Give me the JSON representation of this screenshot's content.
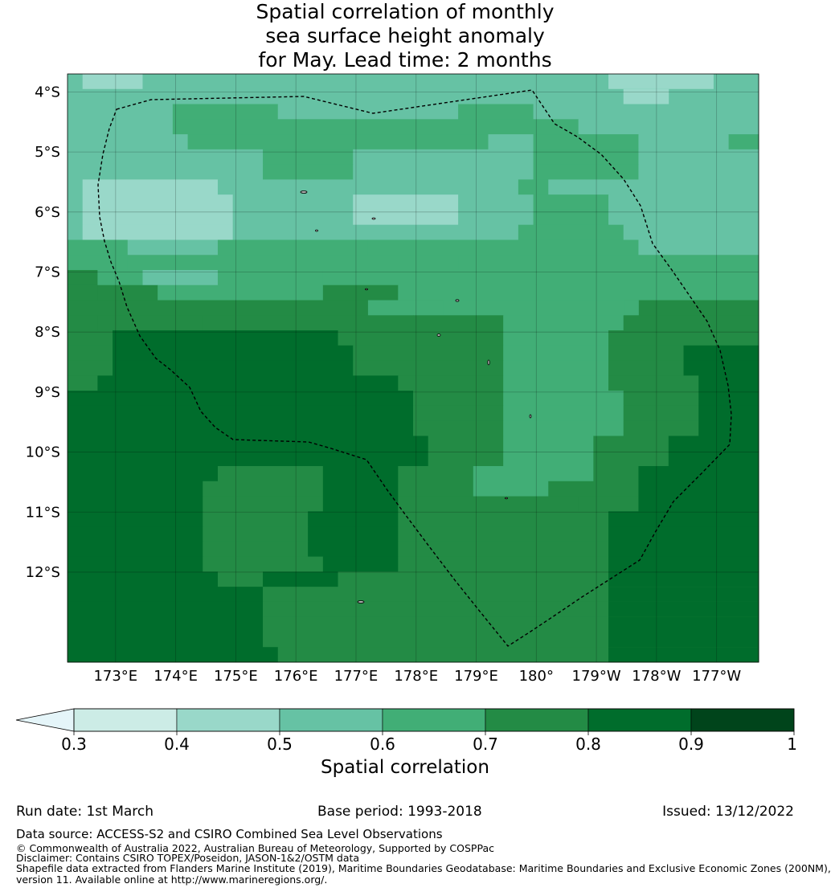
{
  "title_lines": [
    "Spatial correlation of monthly",
    "sea surface height anomaly",
    "for May. Lead time: 2 months"
  ],
  "map": {
    "lat_labels": [
      "4°S",
      "5°S",
      "6°S",
      "7°S",
      "8°S",
      "9°S",
      "10°S",
      "11°S",
      "12°S"
    ],
    "lon_labels": [
      "173°E",
      "174°E",
      "175°E",
      "176°E",
      "177°E",
      "178°E",
      "179°E",
      "180°",
      "179°W",
      "178°W",
      "177°W"
    ],
    "lon_range_east": [
      172.2,
      183.7
    ],
    "lat_range_south": [
      3.7,
      13.5
    ],
    "boundary_style": "dashed",
    "colors": {
      "0.3-0.4": "#ccece6",
      "0.4-0.5": "#99d8c9",
      "0.5-0.6": "#66c2a4",
      "0.6-0.7": "#41ae76",
      "0.7-0.8": "#238b45",
      "0.8-0.9": "#006d2c",
      "0.9-1": "#00441b",
      "below_0.3": "#e5f5f9"
    }
  },
  "colorbar": {
    "ticks": [
      "0.3",
      "0.4",
      "0.5",
      "0.6",
      "0.7",
      "0.8",
      "0.9",
      "1"
    ],
    "bins": [
      {
        "range": "0.3-0.4",
        "color": "#ccece6"
      },
      {
        "range": "0.4-0.5",
        "color": "#99d8c9"
      },
      {
        "range": "0.5-0.6",
        "color": "#66c2a4"
      },
      {
        "range": "0.6-0.7",
        "color": "#41ae76"
      },
      {
        "range": "0.7-0.8",
        "color": "#238b45"
      },
      {
        "range": "0.8-0.9",
        "color": "#006d2c"
      },
      {
        "range": "0.9-1",
        "color": "#00441b"
      }
    ],
    "extend_color": "#e5f5f9",
    "label": "Spatial correlation"
  },
  "footer": {
    "run_date": "Run date: 1st March",
    "base_period": "Base period: 1993-2018",
    "issued": "Issued: 13/12/2022",
    "data_source": "Data source: ACCESS-S2 and CSIRO Combined Sea Level Observations",
    "copyright": "© Commonwealth of Australia 2022, Australian Bureau of Meteorology, Supported by COSPPac",
    "disclaimer": "Disclaimer: Contains CSIRO TOPEX/Poseidon, JASON-1&2/OSTM data",
    "shapefile_line1": "Shapefile data extracted from Flanders Marine Institute (2019), Maritime Boundaries Geodatabase: Maritime Boundaries and Exclusive Economic Zones (200NM),",
    "shapefile_line2": "version 11. Available online at http://www.marineregions.org/."
  }
}
